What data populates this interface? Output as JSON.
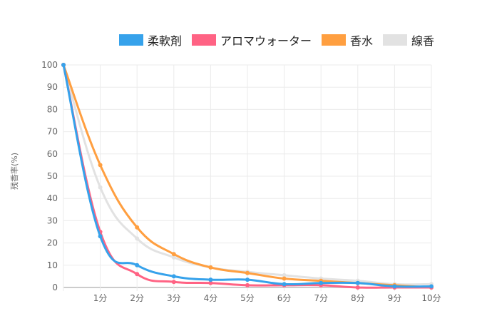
{
  "chart_data": {
    "type": "line",
    "title": "",
    "xlabel": "",
    "ylabel": "残香率(%)",
    "categories": [
      "",
      "1分",
      "2分",
      "3分",
      "4分",
      "5分",
      "6分",
      "7分",
      "8分",
      "9分",
      "10分"
    ],
    "ylim": [
      0,
      100
    ],
    "yticks": [
      "0",
      "10",
      "20",
      "30",
      "40",
      "50",
      "60",
      "70",
      "80",
      "90",
      "100"
    ],
    "grid": true,
    "legend_position": "top-right",
    "series": [
      {
        "name": "柔軟剤",
        "color": "#36a2eb",
        "values": [
          100,
          23,
          10,
          5,
          3.5,
          3.5,
          1.5,
          2,
          2,
          0.5,
          0.5
        ]
      },
      {
        "name": "アロマウォーター",
        "color": "#ff6384",
        "values": [
          100,
          25,
          6,
          2.5,
          2,
          1,
          1,
          1,
          0,
          0,
          0
        ]
      },
      {
        "name": "香水",
        "color": "#ff9f40",
        "values": [
          100,
          55,
          27,
          15,
          9,
          6.5,
          4,
          3,
          2,
          1,
          0
        ]
      },
      {
        "name": "線香",
        "color": "#e2e2e2",
        "values": [
          100,
          45,
          22,
          13.5,
          9,
          7,
          5.5,
          4,
          3,
          1.5,
          1.5
        ]
      }
    ]
  }
}
